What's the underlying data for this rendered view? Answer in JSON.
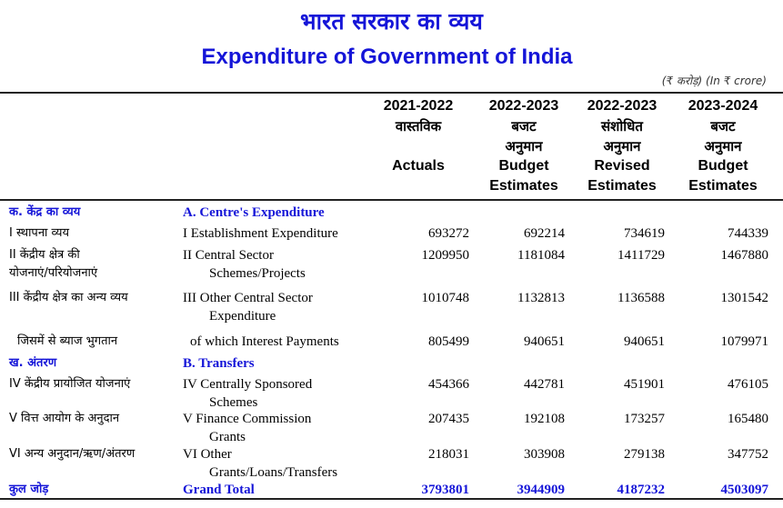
{
  "title_hindi": "भारत सरकार का व्यय",
  "title_english": "Expenditure of Government of India",
  "unit_note": "(₹ करोड़) (In ₹ crore)",
  "columns": [
    {
      "year": "2021-2022",
      "hindi": "वास्तविक",
      "hindi2": "",
      "english": "Actuals",
      "english2": ""
    },
    {
      "year": "2022-2023",
      "hindi": "बजट",
      "hindi2": "अनुमान",
      "english": "Budget",
      "english2": "Estimates"
    },
    {
      "year": "2022-2023",
      "hindi": "संशोधित",
      "hindi2": "अनुमान",
      "english": "Revised",
      "english2": "Estimates"
    },
    {
      "year": "2023-2024",
      "hindi": "बजट",
      "hindi2": "अनुमान",
      "english": "Budget",
      "english2": "Estimates"
    }
  ],
  "section_a": {
    "hindi": "क. केंद्र का व्यय",
    "english": "A. Centre's Expenditure"
  },
  "section_b": {
    "hindi": "ख. अंतरण",
    "english": "B. Transfers"
  },
  "rows": [
    {
      "hindi": "I  स्थापना व्यय",
      "hindi2": "",
      "english": "I  Establishment Expenditure",
      "english2": "",
      "values": [
        "693272",
        "692214",
        "734619",
        "744339"
      ]
    },
    {
      "hindi": "II  केंद्रीय क्षेत्र की",
      "hindi2": "योजनाएं/परियोजनाएं",
      "english": "II  Central Sector",
      "english2": "Schemes/Projects",
      "values": [
        "1209950",
        "1181084",
        "1411729",
        "1467880"
      ]
    },
    {
      "hindi": "III  केंद्रीय क्षेत्र का अन्य व्यय",
      "hindi2": "",
      "english": "III  Other Central Sector",
      "english2": "Expenditure",
      "values": [
        "1010748",
        "1132813",
        "1136588",
        "1301542"
      ]
    },
    {
      "hindi": "जिसमें से ब्याज भुगतान",
      "hindi2": "",
      "english": "of which Interest Payments",
      "english2": "",
      "values": [
        "805499",
        "940651",
        "940651",
        "1079971"
      ]
    },
    {
      "hindi": "IV  केंद्रीय प्रायोजित योजनाएं",
      "hindi2": "",
      "english": "IV  Centrally Sponsored",
      "english2": "Schemes",
      "values": [
        "454366",
        "442781",
        "451901",
        "476105"
      ]
    },
    {
      "hindi": "V  वित्त आयोग के अनुदान",
      "hindi2": "",
      "english": "V  Finance Commission",
      "english2": "Grants",
      "values": [
        "207435",
        "192108",
        "173257",
        "165480"
      ]
    },
    {
      "hindi": "VI  अन्य अनुदान/ऋण/अंतरण",
      "hindi2": "",
      "english": "VI  Other",
      "english2": "Grants/Loans/Transfers",
      "values": [
        "218031",
        "303908",
        "279138",
        "347752"
      ]
    }
  ],
  "total": {
    "hindi": "कुल जोड़",
    "english": "Grand Total",
    "values": [
      "3793801",
      "3944909",
      "4187232",
      "4503097"
    ]
  },
  "colors": {
    "heading": "#1515d8",
    "text": "#000000",
    "rule": "#222222"
  }
}
